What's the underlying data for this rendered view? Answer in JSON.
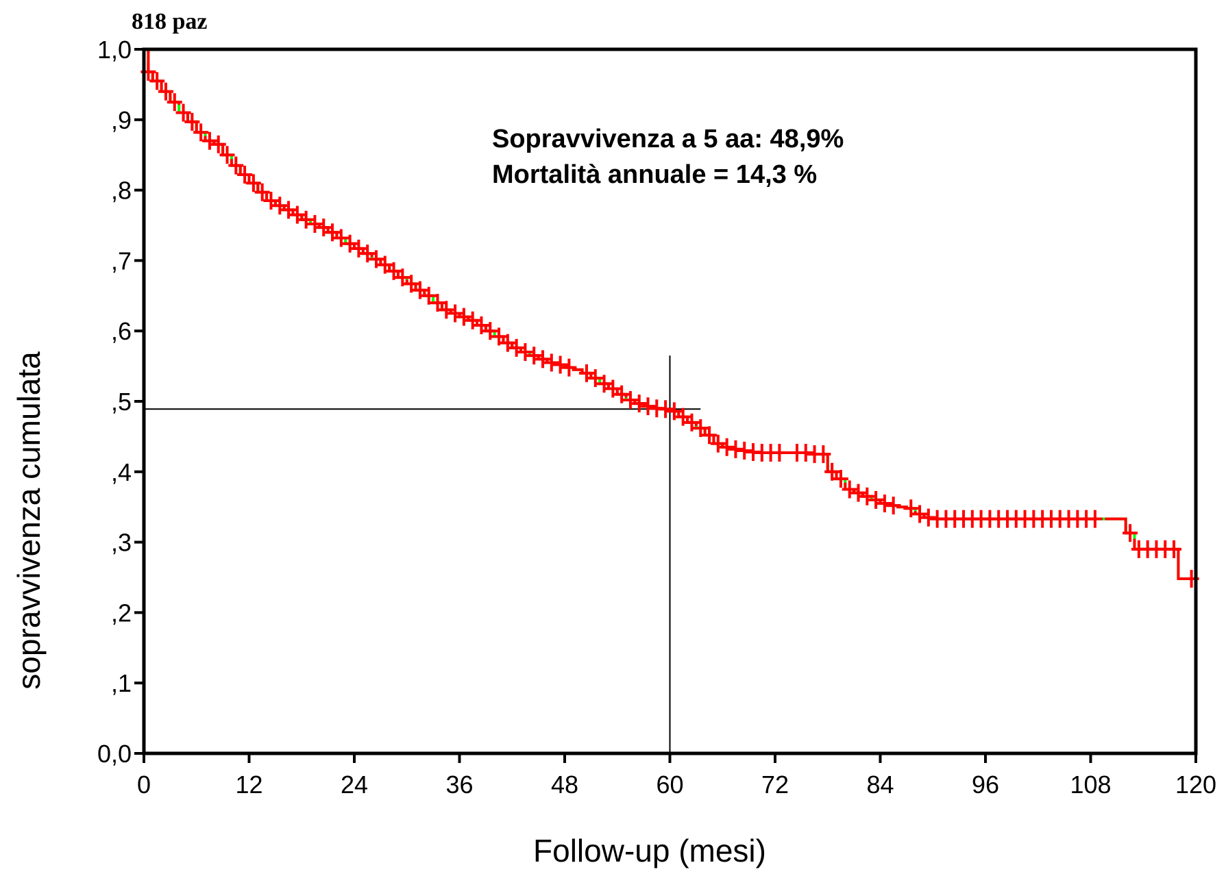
{
  "chart_data": {
    "type": "line",
    "title": "",
    "corner_label": "818 paz",
    "xlabel": "Follow-up (mesi)",
    "ylabel": "sopravvivenza cumulata",
    "xlim": [
      0,
      120
    ],
    "ylim": [
      0,
      1
    ],
    "x_ticks": [
      0,
      12,
      24,
      36,
      48,
      60,
      72,
      84,
      96,
      108,
      120
    ],
    "x_tick_labels": [
      "0",
      "12",
      "24",
      "36",
      "48",
      "60",
      "72",
      "84",
      "96",
      "108",
      "120"
    ],
    "y_ticks": [
      0,
      0.1,
      0.2,
      0.3,
      0.4,
      0.5,
      0.6,
      0.7,
      0.8,
      0.9,
      1.0
    ],
    "y_tick_labels": [
      "0,0",
      ",1",
      ",2",
      ",3",
      ",4",
      ",5",
      ",6",
      ",7",
      ",8",
      ",9",
      "1,0"
    ],
    "grid": false,
    "annotations": [
      "Sopravvivenza a 5 aa: 48,9%",
      "Mortalità annuale = 14,3 %"
    ],
    "reference_lines": {
      "horizontal_y": 0.489,
      "horizontal_x_range": [
        0,
        63.5
      ],
      "vertical_x": 60,
      "vertical_y_range": [
        0,
        0.565
      ]
    },
    "series": [
      {
        "style": "step",
        "color": "#00ff00",
        "censor_color": "#ff0000",
        "x": [
          0,
          0.5,
          1,
          2,
          3,
          4,
          5,
          6,
          7,
          8,
          9,
          10,
          11,
          12,
          13,
          14,
          15,
          16,
          17,
          18,
          19,
          20,
          21,
          22,
          23,
          24,
          25,
          26,
          27,
          28,
          29,
          30,
          31,
          32,
          33,
          34,
          35,
          36,
          37,
          38,
          39,
          40,
          41,
          42,
          43,
          44,
          45,
          46,
          47,
          48,
          49,
          50,
          51,
          52,
          53,
          54,
          55,
          56,
          57,
          58,
          59,
          60,
          61,
          62,
          63,
          64,
          65,
          66,
          67,
          68,
          69,
          70,
          71,
          72,
          73,
          74,
          75,
          76,
          77,
          78,
          79,
          80,
          81,
          82,
          83,
          84,
          85,
          86,
          87,
          88,
          89,
          90,
          109,
          112,
          113,
          118,
          119.5
        ],
        "y": [
          1.0,
          0.968,
          0.955,
          0.94,
          0.925,
          0.91,
          0.897,
          0.882,
          0.87,
          0.865,
          0.85,
          0.835,
          0.822,
          0.81,
          0.797,
          0.785,
          0.778,
          0.772,
          0.765,
          0.758,
          0.752,
          0.747,
          0.74,
          0.732,
          0.724,
          0.717,
          0.71,
          0.702,
          0.694,
          0.685,
          0.676,
          0.667,
          0.658,
          0.65,
          0.64,
          0.63,
          0.625,
          0.62,
          0.615,
          0.608,
          0.6,
          0.592,
          0.583,
          0.576,
          0.57,
          0.565,
          0.56,
          0.555,
          0.552,
          0.548,
          0.545,
          0.54,
          0.533,
          0.525,
          0.518,
          0.51,
          0.502,
          0.497,
          0.493,
          0.49,
          0.489,
          0.486,
          0.478,
          0.47,
          0.462,
          0.452,
          0.44,
          0.435,
          0.432,
          0.43,
          0.428,
          0.427,
          0.427,
          0.427,
          0.427,
          0.427,
          0.427,
          0.425,
          0.425,
          0.4,
          0.39,
          0.375,
          0.37,
          0.365,
          0.36,
          0.355,
          0.352,
          0.35,
          0.348,
          0.34,
          0.335,
          0.333,
          0.333,
          0.313,
          0.29,
          0.248,
          0.248
        ],
        "censored_x": [
          0.5,
          1.5,
          2.5,
          3.5,
          4.5,
          5.5,
          6.5,
          7.5,
          8.5,
          9.5,
          10.5,
          11.5,
          12.5,
          13.5,
          14.5,
          15.5,
          16.5,
          17.5,
          18.5,
          19.5,
          20.5,
          21.5,
          22.5,
          23.5,
          24.5,
          25.5,
          26.5,
          27.5,
          28.5,
          29.5,
          30.5,
          31.5,
          32.5,
          33.5,
          34.5,
          35.5,
          36.5,
          37.5,
          38.5,
          39.5,
          40.5,
          41.5,
          42.5,
          43.5,
          44.5,
          45.5,
          46.5,
          47.5,
          48.5,
          50.5,
          51.5,
          52.5,
          53.5,
          54.5,
          55.5,
          56.5,
          57.5,
          58.5,
          59.5,
          60.5,
          61.5,
          62.5,
          63.5,
          64.5,
          65.5,
          66.5,
          67.5,
          68.5,
          69.5,
          70.5,
          71.5,
          72.5,
          74.5,
          75.5,
          76.5,
          77.5,
          78.5,
          79.5,
          80.5,
          81.5,
          82.5,
          83.5,
          84.5,
          85.5,
          87.5,
          88.5,
          89.5,
          90.5,
          91.5,
          92.5,
          93.5,
          94.5,
          95.5,
          96.5,
          97.5,
          98.5,
          99.5,
          100.5,
          101.5,
          102.5,
          103.5,
          104.5,
          105.5,
          106.5,
          107.5,
          108.5,
          112.5,
          113.5,
          114.5,
          115.5,
          116.5,
          117.5,
          119.5
        ]
      }
    ]
  }
}
